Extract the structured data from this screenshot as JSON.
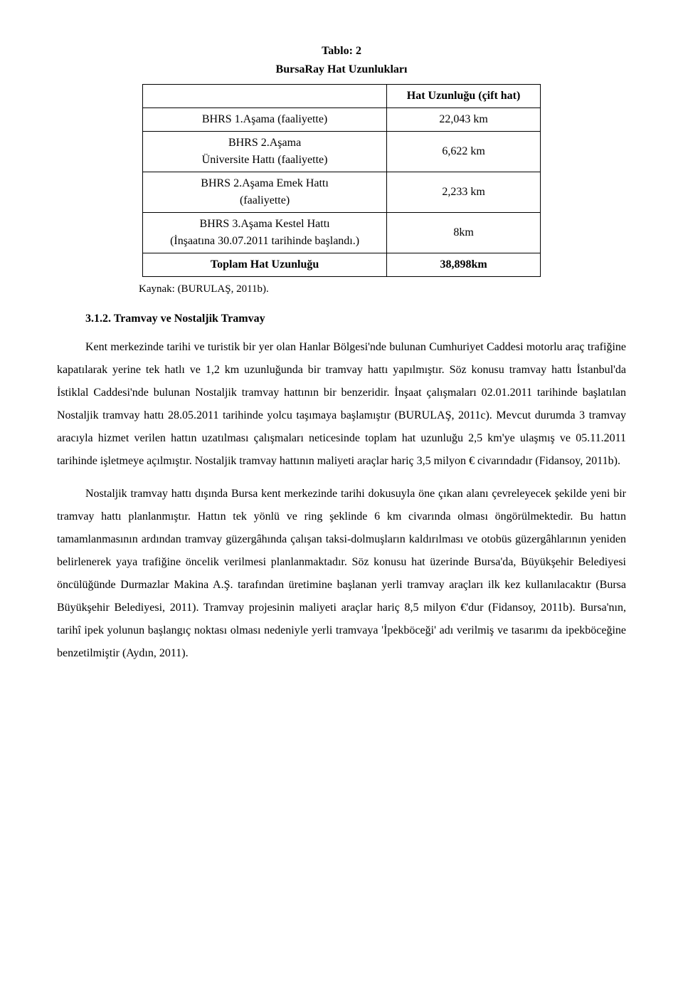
{
  "table": {
    "title_line1": "Tablo: 2",
    "title_line2": "BursaRay Hat Uzunlukları",
    "header_right": "Hat Uzunluğu (çift hat)",
    "rows": [
      {
        "label": "BHRS 1.Aşama (faaliyette)",
        "value": "22,043 km"
      },
      {
        "label": "BHRS 2.Aşama\nÜniversite Hattı (faaliyette)",
        "value": "6,622 km"
      },
      {
        "label": "BHRS 2.Aşama Emek Hattı\n(faaliyette)",
        "value": "2,233 km"
      },
      {
        "label": "BHRS 3.Aşama Kestel Hattı\n(İnşaatına 30.07.2011 tarihinde başlandı.)",
        "value": "8km"
      }
    ],
    "total_label": "Toplam Hat Uzunluğu",
    "total_value": "38,898km",
    "source": "Kaynak: (BURULAŞ, 2011b)."
  },
  "section_heading": "3.1.2. Tramvay ve Nostaljik Tramvay",
  "paragraphs": {
    "p1": "Kent merkezinde tarihi ve turistik bir yer olan Hanlar Bölgesi'nde bulunan Cumhuriyet Caddesi motorlu araç trafiğine kapatılarak yerine tek hatlı ve 1,2 km uzunluğunda bir tramvay hattı yapılmıştır. Söz konusu tramvay hattı İstanbul'da İstiklal Caddesi'nde bulunan Nostaljik tramvay hattının bir benzeridir. İnşaat çalışmaları 02.01.2011 tarihinde başlatılan Nostaljik tramvay hattı 28.05.2011 tarihinde yolcu taşımaya başlamıştır (BURULAŞ, 2011c). Mevcut durumda 3 tramvay aracıyla hizmet verilen hattın uzatılması çalışmaları neticesinde toplam hat uzunluğu 2,5 km'ye ulaşmış ve 05.11.2011 tarihinde işletmeye açılmıştır. Nostaljik tramvay hattının maliyeti araçlar hariç 3,5 milyon € civarındadır (Fidansoy, 2011b).",
    "p2": "Nostaljik tramvay hattı dışında Bursa kent merkezinde tarihi dokusuyla öne çıkan alanı çevreleyecek şekilde yeni bir tramvay hattı planlanmıştır. Hattın tek yönlü ve ring şeklinde 6 km civarında olması öngörülmektedir. Bu hattın tamamlanmasının ardından tramvay güzergâhında çalışan taksi-dolmuşların kaldırılması ve otobüs güzergâhlarının yeniden belirlenerek yaya trafiğine öncelik verilmesi planlanmaktadır. Söz konusu hat üzerinde Bursa'da, Büyükşehir Belediyesi öncülüğünde Durmazlar Makina A.Ş. tarafından üretimine başlanan yerli tramvay araçları ilk kez kullanılacaktır (Bursa Büyükşehir Belediyesi, 2011). Tramvay projesinin maliyeti araçlar hariç 8,5 milyon €'dur (Fidansoy, 2011b). Bursa'nın, tarihî ipek yolunun başlangıç noktası olması nedeniyle yerli tramvaya 'İpekböceği' adı verilmiş ve tasarımı da ipekböceğine benzetilmiştir (Aydın, 2011)."
  }
}
